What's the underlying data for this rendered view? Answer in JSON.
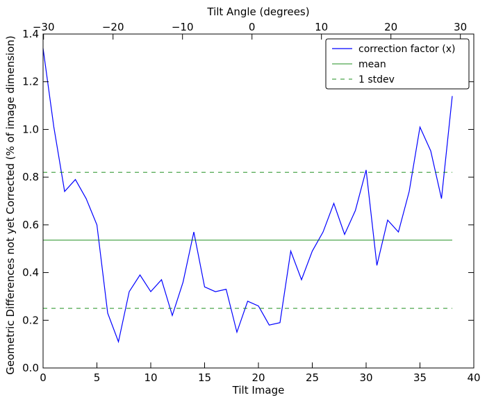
{
  "chart_data": {
    "type": "line",
    "xlabel": "Tilt Image",
    "ylabel": "Geometric Differences not yet Corrected (% of image dimension)",
    "top_xlabel": "Tilt Angle (degrees)",
    "xlim": [
      0,
      40
    ],
    "ylim": [
      0.0,
      1.4
    ],
    "grid": false,
    "legend_position": "top-right",
    "x_ticks": [
      0,
      5,
      10,
      15,
      20,
      25,
      30,
      35,
      40
    ],
    "x_tick_labels": [
      "0",
      "5",
      "10",
      "15",
      "20",
      "25",
      "30",
      "35",
      "40"
    ],
    "y_ticks": [
      0.0,
      0.2,
      0.4,
      0.6,
      0.8,
      1.0,
      1.2,
      1.4
    ],
    "y_tick_labels": [
      "0.0",
      "0.2",
      "0.4",
      "0.6",
      "0.8",
      "1.0",
      "1.2",
      "1.4"
    ],
    "top_ticks": [
      -30,
      -20,
      -10,
      0,
      10,
      20,
      30
    ],
    "top_tick_labels": [
      "−30",
      "−20",
      "−10",
      "0",
      "10",
      "20",
      "30"
    ],
    "top_axis_offset_images": 19.4,
    "top_axis_degrees_per_image": 1.55,
    "series": [
      {
        "name": "correction factor (x)",
        "color": "#0000ff",
        "style": "solid",
        "x": [
          0,
          1,
          2,
          3,
          4,
          5,
          6,
          7,
          8,
          9,
          10,
          11,
          12,
          13,
          14,
          15,
          16,
          17,
          18,
          19,
          20,
          21,
          22,
          23,
          24,
          25,
          26,
          27,
          28,
          29,
          30,
          31,
          32,
          33,
          34,
          35,
          36,
          37,
          38
        ],
        "y": [
          1.34,
          1.01,
          0.74,
          0.79,
          0.71,
          0.6,
          0.23,
          0.11,
          0.32,
          0.39,
          0.32,
          0.37,
          0.22,
          0.36,
          0.57,
          0.34,
          0.32,
          0.33,
          0.15,
          0.28,
          0.26,
          0.18,
          0.19,
          0.49,
          0.37,
          0.49,
          0.57,
          0.69,
          0.56,
          0.66,
          0.83,
          0.43,
          0.62,
          0.57,
          0.74,
          1.01,
          0.91,
          0.71,
          1.14
        ]
      },
      {
        "name": "mean",
        "color": "#008000",
        "style": "solid",
        "x": [
          0,
          38
        ],
        "y": [
          0.536,
          0.536
        ]
      },
      {
        "name": "1 stdev",
        "color": "#008000",
        "style": "dashed",
        "x": [
          0,
          38
        ],
        "y": [
          0.82,
          0.82
        ]
      },
      {
        "name": "",
        "color": "#008000",
        "style": "dashed",
        "x": [
          0,
          38
        ],
        "y": [
          0.25,
          0.25
        ]
      }
    ],
    "legend": [
      {
        "label": "correction factor (x)",
        "color": "#0000ff",
        "style": "solid"
      },
      {
        "label": "mean",
        "color": "#008000",
        "style": "solid"
      },
      {
        "label": "1 stdev",
        "color": "#008000",
        "style": "dashed"
      }
    ]
  }
}
